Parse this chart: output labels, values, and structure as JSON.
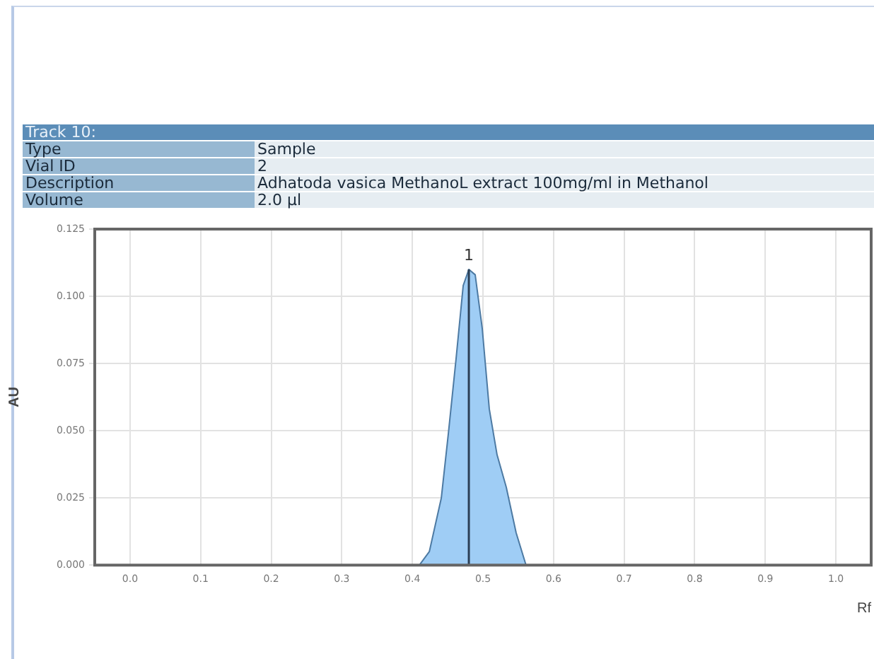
{
  "chart_data": {
    "type": "area",
    "xlabel": "Rf",
    "ylabel": "AU",
    "annotations": [
      "Track 10:",
      "Type",
      "Sample",
      "Vial ID",
      "2",
      "Description",
      "Adhatoda vasica MethanoL extract 100mg/ml in Methanol",
      "Volume",
      "2.0 µl",
      {
        "text": "1",
        "x": 0.48,
        "y": 0.11
      }
    ],
    "series": [
      {
        "type": "area",
        "color": "#9fcdf5",
        "x": [
          0.41,
          0.424,
          0.441,
          0.451,
          0.462,
          0.472,
          0.48,
          0.489,
          0.499,
          0.509,
          0.52,
          0.533,
          0.547,
          0.561
        ],
        "values": [
          0,
          0.005,
          0.025,
          0.049,
          0.077,
          0.104,
          0.11,
          0.108,
          0.088,
          0.058,
          0.041,
          0.029,
          0.012,
          0
        ]
      },
      {
        "type": "line",
        "color": "#2b3f55",
        "x": [
          0.48,
          0.48
        ],
        "values": [
          0,
          0.11
        ]
      }
    ],
    "xlim": [
      -0.05,
      1.05
    ],
    "xticks": [
      {
        "value": 0,
        "label": "0.0"
      },
      0.1,
      0.2,
      0.3,
      0.4,
      0.5,
      0.6,
      0.7,
      0.8,
      0.9,
      {
        "value": 1,
        "label": "1.0"
      }
    ],
    "ylim": [
      0,
      0.125
    ],
    "yticks": [
      {
        "value": 0,
        "label": "0.000"
      },
      {
        "value": 0.025,
        "label": "0.025"
      },
      {
        "value": 0.05,
        "label": "0.050"
      },
      {
        "value": 0.075,
        "label": "0.075"
      },
      {
        "value": 0.1,
        "label": "0.100"
      },
      {
        "value": 0.125,
        "label": "0.125"
      }
    ],
    "grid": true,
    "legend": false,
    "marker": "none"
  }
}
